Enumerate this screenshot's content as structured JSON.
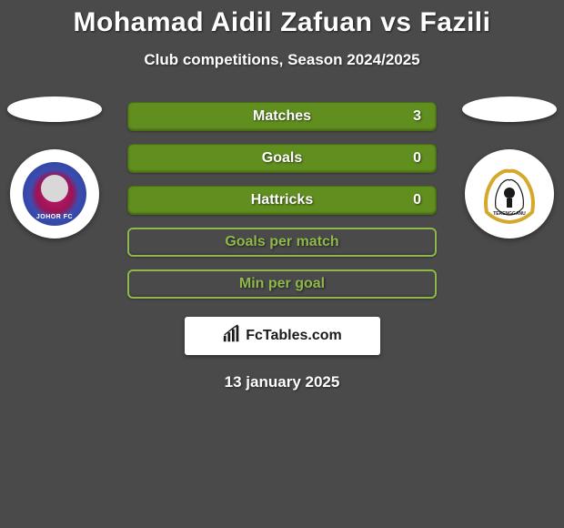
{
  "title": "Mohamad Aidil Zafuan vs Fazili",
  "subtitle": "Club competitions, Season 2024/2025",
  "date": "13 january 2025",
  "brand": "FcTables.com",
  "players": {
    "left": {
      "club_name": "JOHOR FC",
      "badge_colors": [
        "#c4196a",
        "#3a4db0"
      ]
    },
    "right": {
      "club_name": "TERENGGANU",
      "badge_colors": [
        "#d4a82a",
        "#1a1a1a",
        "#ffffff"
      ]
    }
  },
  "stat_colors": {
    "filled_bg": "#618f1f",
    "empty_bg": "#4a4a4a",
    "empty_border": "#8fb84a"
  },
  "stats": [
    {
      "label": "Matches",
      "value": "3",
      "filled": true
    },
    {
      "label": "Goals",
      "value": "0",
      "filled": true
    },
    {
      "label": "Hattricks",
      "value": "0",
      "filled": true
    },
    {
      "label": "Goals per match",
      "value": "",
      "filled": false
    },
    {
      "label": "Min per goal",
      "value": "",
      "filled": false
    }
  ]
}
